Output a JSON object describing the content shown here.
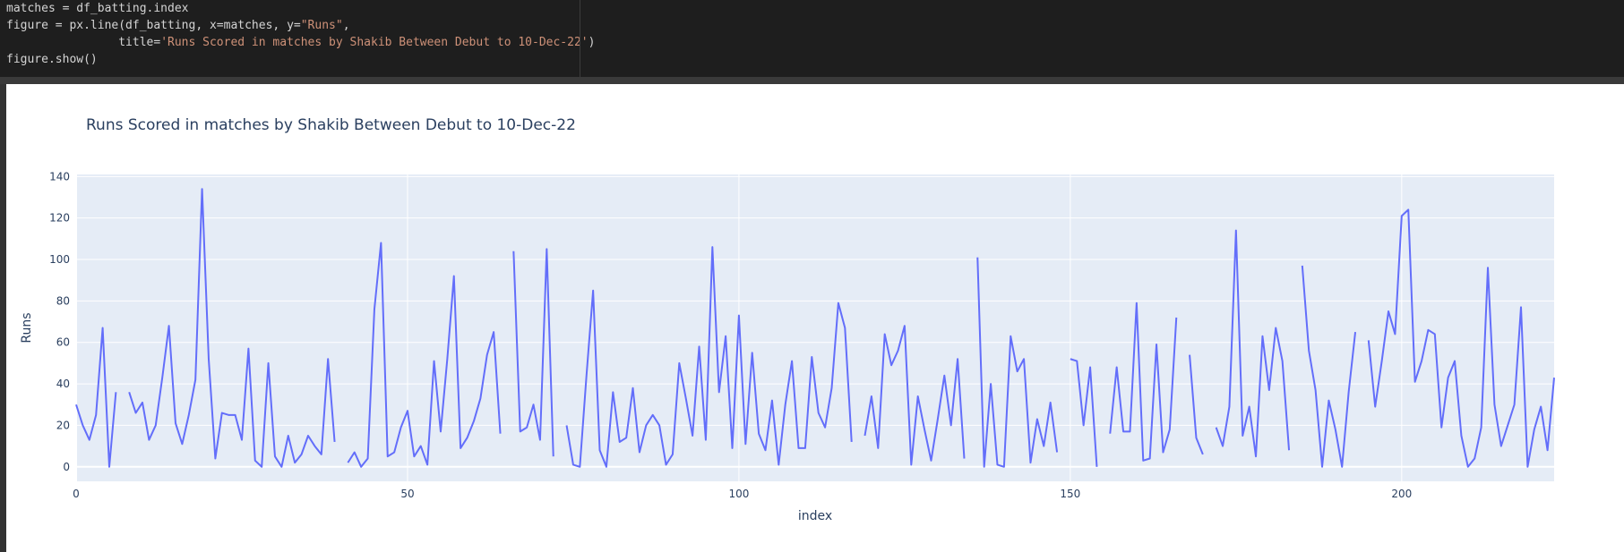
{
  "code": {
    "line1": "matches = df_batting.index",
    "line2_a": "figure = px.line(df_batting, x=matches, y=",
    "line2_str": "\"Runs\"",
    "line2_b": ",",
    "line3_a": "                title=",
    "line3_str": "'Runs Scored in matches by Shakib Between Debut to 10-Dec-22'",
    "line3_b": ")",
    "line4": "figure.show()"
  },
  "colors": {
    "line": "#636efa",
    "plot_bg": "#e5ecf6",
    "text": "#2a3f5f"
  },
  "chart_data": {
    "type": "line",
    "title": "Runs Scored in matches by Shakib Between Debut to 10-Dec-22",
    "xlabel": "index",
    "ylabel": "Runs",
    "xlim": [
      0,
      223
    ],
    "ylim": [
      -7,
      141
    ],
    "x_ticks": [
      0,
      50,
      100,
      150,
      200
    ],
    "y_ticks": [
      0,
      20,
      40,
      60,
      80,
      100,
      120,
      140
    ],
    "grid": true,
    "series": [
      {
        "values": [
          30,
          20,
          13,
          25,
          67,
          0,
          36,
          null,
          36,
          26,
          31,
          13,
          20,
          43,
          68,
          21,
          11,
          25,
          42,
          134,
          52,
          4,
          26,
          25,
          25,
          13,
          57,
          3,
          0,
          50,
          5,
          0,
          15,
          2,
          6,
          15,
          10,
          6,
          52,
          12,
          null,
          2,
          7,
          0,
          4,
          76,
          108,
          5,
          7,
          19,
          27,
          5,
          10,
          1,
          51,
          17,
          52,
          92,
          9,
          14,
          22,
          33,
          54,
          65,
          16,
          null,
          104,
          17,
          19,
          30,
          13,
          105,
          5,
          null,
          20,
          1,
          0,
          44,
          85,
          8,
          0,
          36,
          12,
          14,
          38,
          7,
          20,
          25,
          20,
          1,
          6,
          50,
          33,
          15,
          58,
          13,
          106,
          36,
          63,
          9,
          73,
          11,
          55,
          16,
          8,
          32,
          1,
          30,
          51,
          9,
          9,
          53,
          26,
          19,
          38,
          79,
          67,
          12,
          null,
          15,
          34,
          9,
          64,
          49,
          56,
          68,
          1,
          34,
          18,
          3,
          23,
          44,
          20,
          52,
          4,
          null,
          101,
          0,
          40,
          1,
          0,
          63,
          46,
          52,
          2,
          23,
          10,
          31,
          7,
          null,
          52,
          51,
          20,
          48,
          0,
          null,
          16,
          48,
          17,
          17,
          79,
          3,
          4,
          59,
          7,
          18,
          72,
          null,
          54,
          14,
          6,
          null,
          19,
          10,
          29,
          114,
          15,
          29,
          5,
          63,
          37,
          67,
          51,
          8,
          null,
          97,
          56,
          37,
          0,
          32,
          18,
          0,
          36,
          65,
          null,
          61,
          29,
          51,
          75,
          64,
          121,
          124,
          41,
          51,
          66,
          64,
          19,
          43,
          51,
          15,
          0,
          4,
          19,
          96,
          30,
          10,
          20,
          30,
          77,
          0,
          18,
          29,
          8,
          43
        ]
      }
    ]
  }
}
